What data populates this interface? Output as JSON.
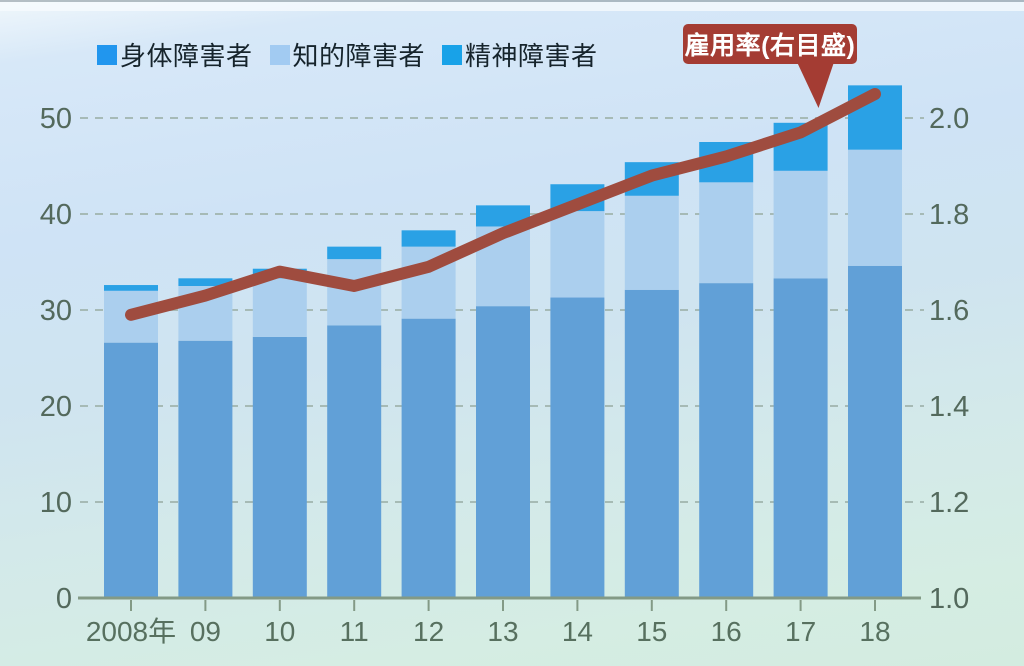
{
  "legend": {
    "items": [
      {
        "label": "身体障害者",
        "color": "#2196ee"
      },
      {
        "label": "知的障害者",
        "color": "#a2cbf2"
      },
      {
        "label": "精神障害者",
        "color": "#18a2e8"
      }
    ]
  },
  "callout": {
    "label": "雇用率(右目盛)",
    "bg": "#a43c33",
    "text_color": "#ffffff"
  },
  "chart_data": {
    "type": "bar",
    "subtype": "stacked-bars-with-line",
    "title": "",
    "categories": [
      "2008年",
      "09",
      "10",
      "11",
      "12",
      "13",
      "14",
      "15",
      "16",
      "17",
      "18"
    ],
    "series": [
      {
        "name": "身体障害者",
        "color": "#61a0d7",
        "values": [
          26.6,
          26.8,
          27.2,
          28.4,
          29.1,
          30.4,
          31.3,
          32.1,
          32.8,
          33.3,
          34.6
        ]
      },
      {
        "name": "知的障害者",
        "color": "#abcfee",
        "values": [
          5.4,
          5.7,
          6.1,
          6.9,
          7.5,
          8.3,
          9.0,
          9.8,
          10.5,
          11.2,
          12.1
        ]
      },
      {
        "name": "精神障害者",
        "color": "#2aa1e5",
        "values": [
          0.6,
          0.8,
          1.0,
          1.3,
          1.7,
          2.2,
          2.8,
          3.5,
          4.2,
          5.0,
          6.7
        ]
      }
    ],
    "line_series": {
      "name": "雇用率(右目盛)",
      "color": "#9f4c3f",
      "values": [
        1.59,
        1.63,
        1.68,
        1.65,
        1.69,
        1.76,
        1.82,
        1.88,
        1.92,
        1.97,
        2.05
      ]
    },
    "left_axis": {
      "tick_labels": [
        "0",
        "10",
        "20",
        "30",
        "40",
        "50"
      ],
      "min": 0,
      "max": 55
    },
    "right_axis": {
      "tick_labels": [
        "1.0",
        "1.2",
        "1.4",
        "1.6",
        "1.8",
        "2.0"
      ],
      "min": 1.0,
      "max": 2.1
    },
    "grid": "dashed-horizontal",
    "legend_position": "top-left",
    "axis_color": "#839a86",
    "grid_color": "#9fb3ac"
  }
}
